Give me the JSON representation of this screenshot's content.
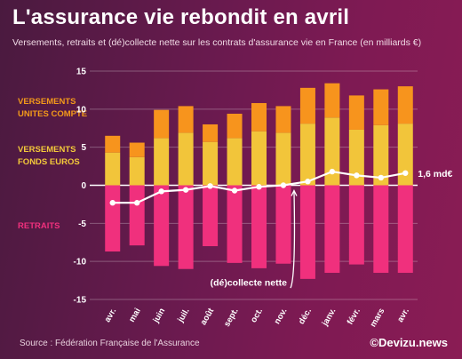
{
  "header": {
    "title": "L'assurance vie rebondit en avril",
    "subtitle": "Versements, retraits et (dé)collecte nette sur les contrats d'assurance vie en France (en milliards €)"
  },
  "legend": {
    "unites_compte": [
      "VERSEMENTS",
      "UNITES COMPTE"
    ],
    "fonds_euros": [
      "VERSEMENTS",
      "FONDS EUROS"
    ],
    "retraits": "RETRAITS"
  },
  "footer": {
    "source": "Source : Fédération Française de l'Assurance",
    "brand": "©Devizu.news"
  },
  "chart_data": {
    "type": "bar",
    "stacked": true,
    "categories": [
      "avr.",
      "mai",
      "juin",
      "juil.",
      "août",
      "sept.",
      "oct.",
      "nov.",
      "déc.",
      "janv.",
      "févr.",
      "mars",
      "avr."
    ],
    "series": [
      {
        "name": "VERSEMENTS FONDS EUROS",
        "type": "bar",
        "color": "#f2c53a",
        "values": [
          4.3,
          3.7,
          6.2,
          6.9,
          5.7,
          6.2,
          7.1,
          6.9,
          8.1,
          8.9,
          7.3,
          7.9,
          8.1
        ]
      },
      {
        "name": "VERSEMENTS UNITES COMPTE",
        "type": "bar",
        "color": "#f7941d",
        "values": [
          2.2,
          1.9,
          3.7,
          3.5,
          2.3,
          3.2,
          3.7,
          3.5,
          4.7,
          4.5,
          4.5,
          4.7,
          4.9
        ]
      },
      {
        "name": "RETRAITS",
        "type": "bar",
        "color": "#f0307d",
        "values": [
          -8.7,
          -7.9,
          -10.6,
          -11.0,
          -8.0,
          -10.2,
          -10.9,
          -10.3,
          -12.3,
          -11.5,
          -10.4,
          -11.5,
          -11.5
        ]
      },
      {
        "name": "(dé)collecte nette",
        "type": "line",
        "color": "#ffffff",
        "values": [
          -2.3,
          -2.3,
          -0.8,
          -0.6,
          -0.1,
          -0.7,
          -0.2,
          0.0,
          0.5,
          1.8,
          1.3,
          1.0,
          1.6
        ]
      }
    ],
    "ylim": [
      -15,
      15
    ],
    "yticks": [
      -15,
      -10,
      -5,
      0,
      5,
      10,
      15
    ],
    "grid": true,
    "annotations": [
      {
        "text": "1,6 md€",
        "target": "last-point"
      },
      {
        "text": "(dé)collecte nette",
        "target": "nov."
      }
    ]
  }
}
